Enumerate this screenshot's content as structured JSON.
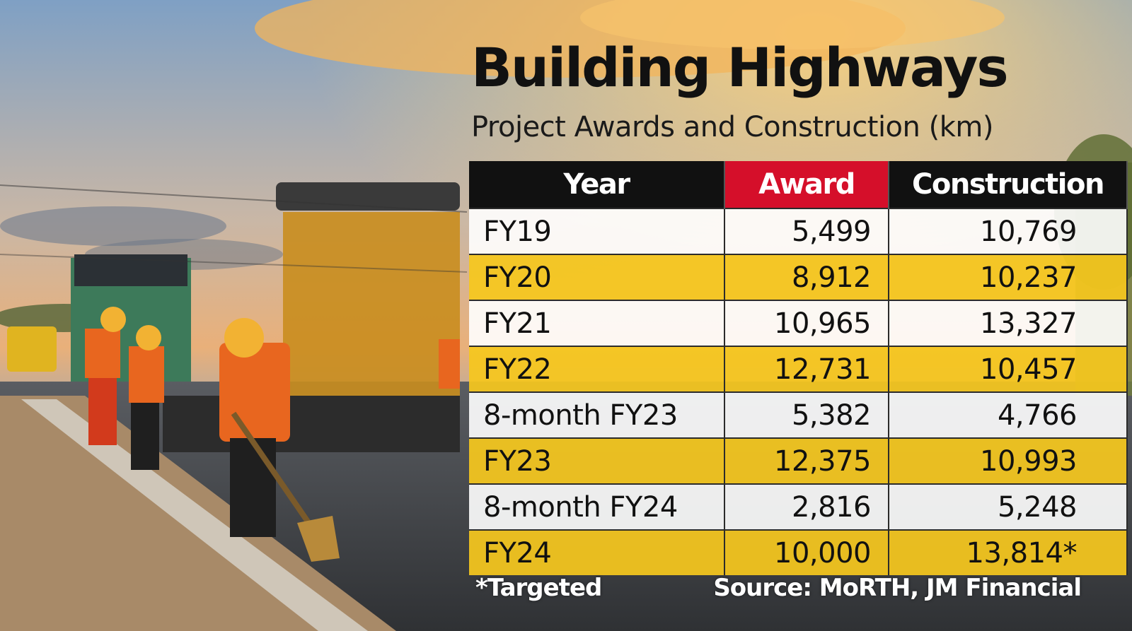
{
  "chart_data": {
    "type": "table",
    "title": "Building Highways",
    "subtitle": "Project Awards and Construction (km)",
    "columns": [
      "Year",
      "Award",
      "Construction"
    ],
    "rows": [
      {
        "year": "FY19",
        "award": "5,499",
        "construction": "10,769"
      },
      {
        "year": "FY20",
        "award": "8,912",
        "construction": "10,237"
      },
      {
        "year": "FY21",
        "award": "10,965",
        "construction": "13,327"
      },
      {
        "year": "FY22",
        "award": "12,731",
        "construction": "10,457"
      },
      {
        "year": "8-month FY23",
        "award": "5,382",
        "construction": "4,766"
      },
      {
        "year": "FY23",
        "award": "12,375",
        "construction": "10,993"
      },
      {
        "year": "8-month FY24",
        "award": "2,816",
        "construction": "5,248"
      },
      {
        "year": "FY24",
        "award": "10,000",
        "construction": "13,814*"
      }
    ],
    "footnote": "*Targeted",
    "source": "Source: MoRTH, JM Financial"
  },
  "colors": {
    "header_background": "#111111",
    "award_header_background": "#d50f2a",
    "alternate_row_yellow": "#f5c71e",
    "alternate_row_light": "#ffffff"
  }
}
